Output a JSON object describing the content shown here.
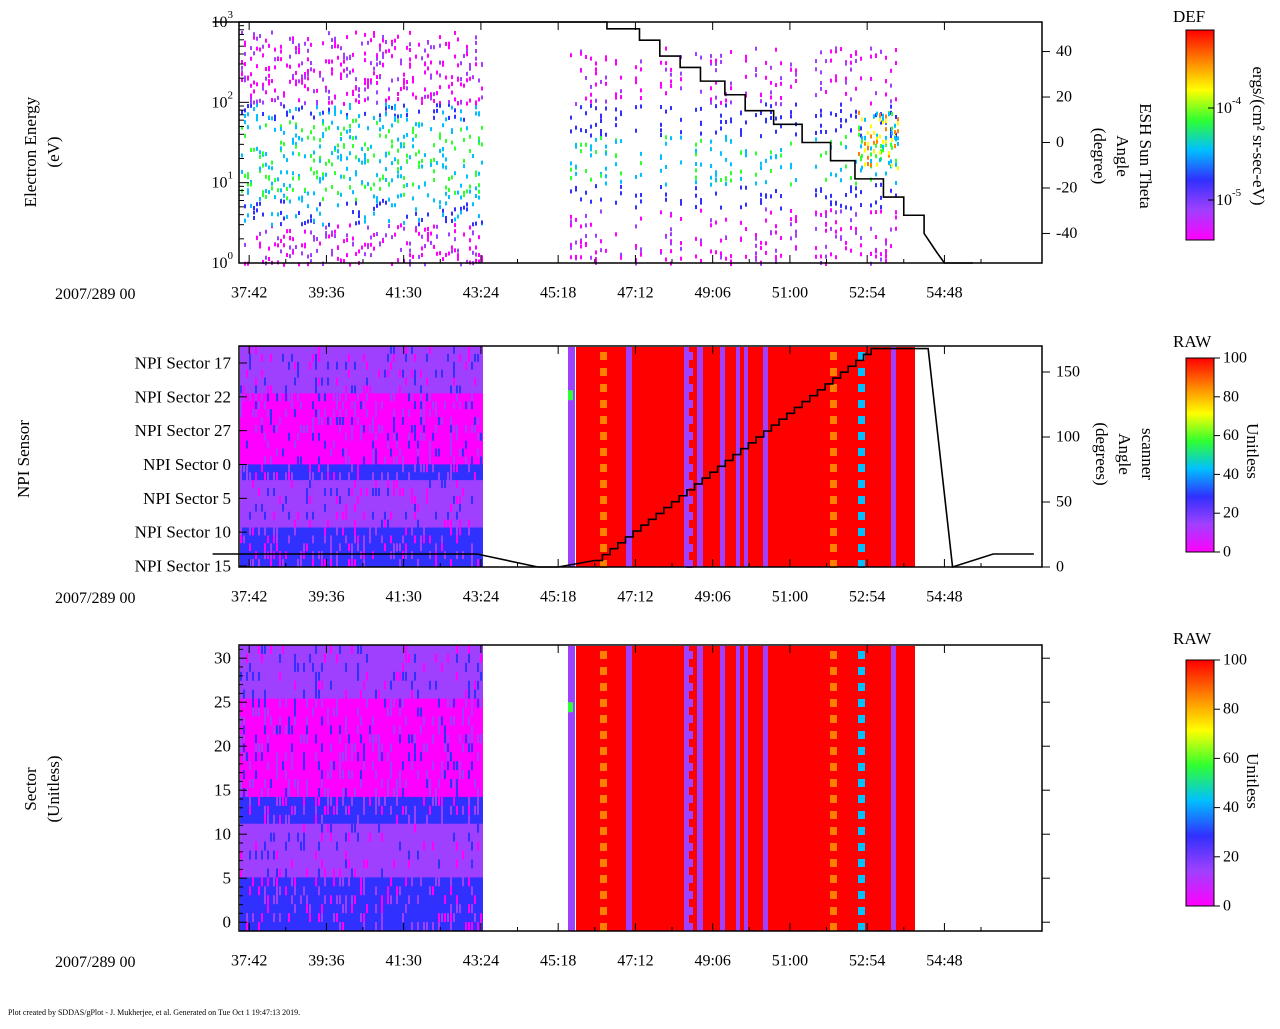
{
  "footer": "Plot created by SDDAS/gPlot - J. Mukherjee, et al.  Generated on Tue Oct 1 19:47:13 2019.",
  "date_label": "2007/289 00",
  "time_ticks": [
    "37:42",
    "39:36",
    "41:30",
    "43:24",
    "45:18",
    "47:12",
    "49:06",
    "51:00",
    "52:54",
    "54:48"
  ],
  "chart_data": [
    {
      "type": "heatmap",
      "title": "Electron Energy",
      "ylabel": "Electron Energy",
      "yunit": "(eV)",
      "y_scale": "log",
      "ylim": [
        1,
        1000
      ],
      "y_ticks": [
        {
          "base": "10",
          "exp": "0"
        },
        {
          "base": "10",
          "exp": "1"
        },
        {
          "base": "10",
          "exp": "2"
        },
        {
          "base": "10",
          "exp": "3"
        }
      ],
      "y2label_1": "ESH Sun Theta",
      "y2label_2": "Angle",
      "y2label_3": "(degree)",
      "y2lim": [
        -53,
        53
      ],
      "y2_ticks": [
        "40",
        "20",
        "0",
        "-20",
        "-40"
      ],
      "y2_tick_values": [
        40,
        20,
        0,
        -20,
        -40
      ],
      "colorbar": {
        "title": "DEF",
        "label": "ergs/(cm² sr-sec-eV)",
        "ticks": [
          {
            "base": "10",
            "exp": "-4"
          },
          {
            "base": "10",
            "exp": "-5"
          }
        ]
      },
      "line_series": {
        "name": "ESH Sun Theta",
        "x_minutes": [
          36.8,
          42.0,
          45.6,
          46.5,
          47.3,
          47.8,
          48.3,
          48.8,
          49.4,
          49.9,
          50.6,
          51.3,
          52.0,
          52.6,
          53.3,
          53.8,
          54.3,
          54.6,
          54.8,
          55.5
        ],
        "y_deg": [
          53,
          53,
          53,
          50,
          45,
          38,
          33,
          27,
          21,
          14,
          8,
          0,
          -8,
          -16,
          -24,
          -32,
          -40,
          -48,
          -53,
          -53
        ]
      }
    },
    {
      "type": "heatmap",
      "title": "NPI Sensor",
      "ylabel": "NPI Sensor",
      "y_categories": [
        "NPI Sector 17",
        "NPI Sector 22",
        "NPI Sector 27",
        "NPI Sector 0",
        "NPI Sector 5",
        "NPI Sector 10",
        "NPI Sector 15"
      ],
      "y2label_1": "scanner",
      "y2label_2": "Angle",
      "y2label_3": "(degrees)",
      "y2lim": [
        0,
        170
      ],
      "y2_ticks": [
        "150",
        "100",
        "50",
        "0"
      ],
      "y2_tick_values": [
        150,
        100,
        50,
        0
      ],
      "colorbar": {
        "title": "RAW",
        "label": "Unitless",
        "ticks": [
          "100",
          "80",
          "60",
          "40",
          "20",
          "0"
        ]
      },
      "line_series": {
        "name": "scanner Angle",
        "x_minutes": [
          36.8,
          43.3,
          44.8,
          45.3,
          46.2,
          53.0,
          54.4,
          55.0,
          56.0,
          57.0
        ],
        "y_deg": [
          10,
          10,
          0,
          0,
          5,
          168,
          168,
          0,
          10,
          10
        ]
      }
    },
    {
      "type": "heatmap",
      "title": "Sector",
      "ylabel": "Sector",
      "yunit": "(Unitless)",
      "ylim": [
        -1,
        31.5
      ],
      "y_ticks": [
        "30",
        "25",
        "20",
        "15",
        "10",
        "5",
        "0"
      ],
      "y_tick_values": [
        30,
        25,
        20,
        15,
        10,
        5,
        0
      ],
      "colorbar": {
        "title": "RAW",
        "label": "Unitless",
        "ticks": [
          "100",
          "80",
          "60",
          "40",
          "20",
          "0"
        ]
      }
    }
  ],
  "colors": {
    "magenta": "#ff00ff",
    "violet": "#a040ff",
    "blue": "#3030ff",
    "cyan": "#00c0ff",
    "green": "#30ff30",
    "red": "#ff0000",
    "orange": "#ff8000",
    "line": "#000000"
  }
}
